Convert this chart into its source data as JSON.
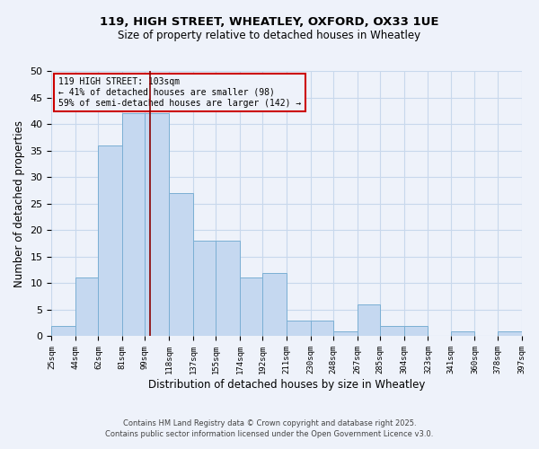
{
  "title1": "119, HIGH STREET, WHEATLEY, OXFORD, OX33 1UE",
  "title2": "Size of property relative to detached houses in Wheatley",
  "xlabel": "Distribution of detached houses by size in Wheatley",
  "ylabel": "Number of detached properties",
  "bar_values": [
    2,
    11,
    36,
    42,
    42,
    27,
    18,
    18,
    11,
    12,
    3,
    3,
    1,
    6,
    2,
    2,
    0,
    1,
    0,
    1
  ],
  "bin_edges": [
    25,
    44,
    62,
    81,
    99,
    118,
    137,
    155,
    174,
    192,
    211,
    230,
    248,
    267,
    285,
    304,
    323,
    341,
    360,
    378,
    397
  ],
  "tick_labels": [
    "25sqm",
    "44sqm",
    "62sqm",
    "81sqm",
    "99sqm",
    "118sqm",
    "137sqm",
    "155sqm",
    "174sqm",
    "192sqm",
    "211sqm",
    "230sqm",
    "248sqm",
    "267sqm",
    "285sqm",
    "304sqm",
    "323sqm",
    "341sqm",
    "360sqm",
    "378sqm",
    "397sqm"
  ],
  "bar_color": "#c5d8f0",
  "bar_edge_color": "#7bafd4",
  "property_line_x": 103,
  "property_line_color": "#8b0000",
  "annotation_line1": "119 HIGH STREET: 103sqm",
  "annotation_line2": "← 41% of detached houses are smaller (98)",
  "annotation_line3": "59% of semi-detached houses are larger (142) →",
  "annotation_box_color": "#cc0000",
  "ylim": [
    0,
    50
  ],
  "yticks": [
    0,
    5,
    10,
    15,
    20,
    25,
    30,
    35,
    40,
    45,
    50
  ],
  "grid_color": "#c8d8ec",
  "background_color": "#eef2fa",
  "footer1": "Contains HM Land Registry data © Crown copyright and database right 2025.",
  "footer2": "Contains public sector information licensed under the Open Government Licence v3.0."
}
